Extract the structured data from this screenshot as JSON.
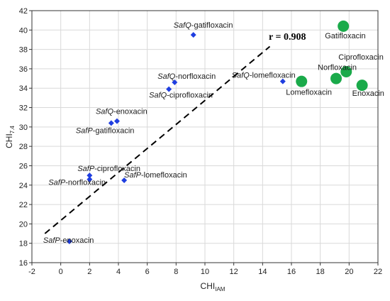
{
  "chart_data": {
    "type": "scatter",
    "xlabel": "CHI",
    "xlabel_sub": "IAM",
    "ylabel": "CHI",
    "ylabel_sub": "7.4",
    "xlim": [
      -2,
      22
    ],
    "ylim": [
      16,
      42
    ],
    "xticks": [
      -2,
      0,
      2,
      4,
      6,
      8,
      10,
      12,
      14,
      16,
      18,
      20,
      22
    ],
    "yticks": [
      16,
      18,
      20,
      22,
      24,
      26,
      28,
      30,
      32,
      34,
      36,
      38,
      40,
      42
    ],
    "grid": true,
    "annotation": "r = 0.908",
    "trendline": {
      "x": [
        -1.1,
        14.5
      ],
      "y": [
        19.0,
        38.3
      ]
    },
    "colors": {
      "diamond": "#1f3ee0",
      "circle": "#1aaa4a",
      "trend": "#000000"
    },
    "series": [
      {
        "marker": "diamond",
        "points": [
          {
            "x": 9.2,
            "y": 39.5,
            "prefix": "SafQ",
            "suffix": "-gatifloxacin"
          },
          {
            "x": 7.9,
            "y": 34.6,
            "prefix": "SafQ",
            "suffix": "-norfloxacin"
          },
          {
            "x": 7.5,
            "y": 33.9,
            "prefix": "SafQ",
            "suffix": "-ciprofloxacin"
          },
          {
            "x": 3.9,
            "y": 30.6,
            "prefix": "SafQ",
            "suffix": "-enoxacin"
          },
          {
            "x": 3.5,
            "y": 30.4,
            "prefix": "SafP",
            "suffix": "-gatifloxacin"
          },
          {
            "x": 2.0,
            "y": 25.0,
            "prefix": "SafP",
            "suffix": "-ciprofloxacin"
          },
          {
            "x": 2.0,
            "y": 24.6,
            "prefix": "SafP",
            "suffix": "-norfloxacin"
          },
          {
            "x": 4.4,
            "y": 24.5,
            "prefix": "SafP",
            "suffix": "-lomefloxacin"
          },
          {
            "x": 0.6,
            "y": 18.2,
            "prefix": "SafP",
            "suffix": "-enoxacin"
          },
          {
            "x": 15.4,
            "y": 34.7,
            "prefix": "SafQ",
            "suffix": "-lomefloxacin"
          }
        ]
      },
      {
        "marker": "circle",
        "points": [
          {
            "x": 19.6,
            "y": 40.4,
            "label": "Gatifloxacin"
          },
          {
            "x": 19.8,
            "y": 35.7,
            "label": "Ciprofloxacin"
          },
          {
            "x": 19.1,
            "y": 35.0,
            "label": "Norfloxacin"
          },
          {
            "x": 16.7,
            "y": 34.7,
            "label": "Lomefloxacin"
          },
          {
            "x": 20.9,
            "y": 34.3,
            "label": "Enoxacin"
          }
        ]
      }
    ]
  }
}
